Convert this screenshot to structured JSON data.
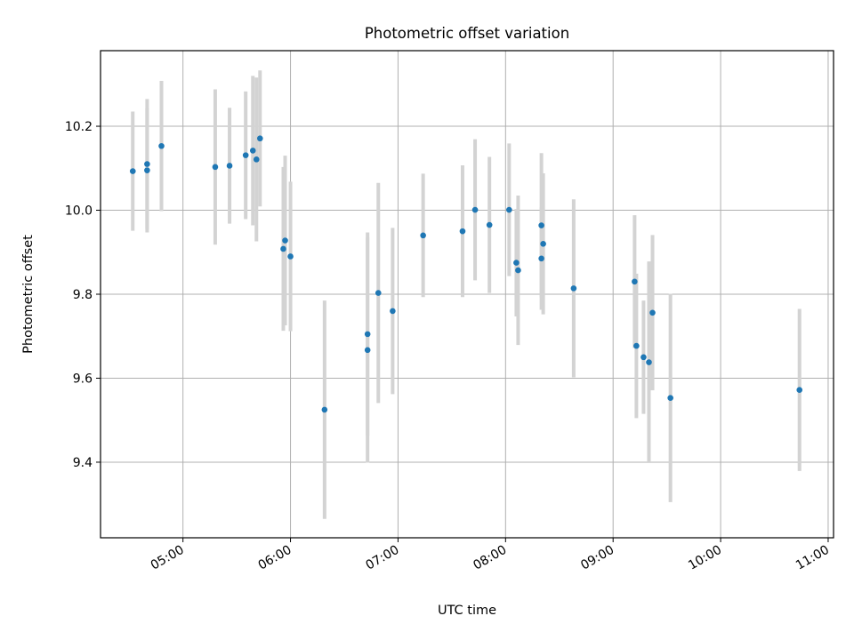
{
  "chart_data": {
    "type": "scatter",
    "title": "Photometric offset variation",
    "xlabel": "UTC time",
    "ylabel": "Photometric offset",
    "x_ticks": [
      "05:00",
      "06:00",
      "07:00",
      "08:00",
      "09:00",
      "10:00",
      "11:00"
    ],
    "y_ticks": [
      "9.4",
      "9.6",
      "9.8",
      "10.0",
      "10.2"
    ],
    "xlim": [
      "04:14",
      "11:03"
    ],
    "ylim": [
      9.22,
      10.38
    ],
    "grid": true,
    "colors": {
      "point": "#1f77b4",
      "errorbar": "#d3d3d3",
      "grid": "#b0b0b0"
    },
    "series": [
      {
        "points": [
          {
            "x": "04:32",
            "y": 10.093,
            "err": 0.142
          },
          {
            "x": "04:40",
            "y": 10.11,
            "err": 0.155
          },
          {
            "x": "04:40",
            "y": 10.095,
            "err": 0.148
          },
          {
            "x": "04:48",
            "y": 10.153,
            "err": 0.155
          },
          {
            "x": "05:18",
            "y": 10.103,
            "err": 0.185
          },
          {
            "x": "05:26",
            "y": 10.106,
            "err": 0.138
          },
          {
            "x": "05:35",
            "y": 10.131,
            "err": 0.152
          },
          {
            "x": "05:39",
            "y": 10.142,
            "err": 0.178
          },
          {
            "x": "05:41",
            "y": 10.121,
            "err": 0.195
          },
          {
            "x": "05:43",
            "y": 10.171,
            "err": 0.162
          },
          {
            "x": "05:56",
            "y": 9.908,
            "err": 0.195
          },
          {
            "x": "05:57",
            "y": 9.928,
            "err": 0.202
          },
          {
            "x": "06:00",
            "y": 9.89,
            "err": 0.178
          },
          {
            "x": "06:19",
            "y": 9.525,
            "err": 0.26
          },
          {
            "x": "06:43",
            "y": 9.705,
            "err": 0.242
          },
          {
            "x": "06:43",
            "y": 9.667,
            "err": 0.268
          },
          {
            "x": "06:49",
            "y": 9.803,
            "err": 0.262
          },
          {
            "x": "06:57",
            "y": 9.76,
            "err": 0.198
          },
          {
            "x": "07:14",
            "y": 9.94,
            "err": 0.147
          },
          {
            "x": "07:36",
            "y": 9.95,
            "err": 0.157
          },
          {
            "x": "07:43",
            "y": 10.001,
            "err": 0.168
          },
          {
            "x": "07:51",
            "y": 9.965,
            "err": 0.162
          },
          {
            "x": "08:02",
            "y": 10.001,
            "err": 0.158
          },
          {
            "x": "08:06",
            "y": 9.875,
            "err": 0.128
          },
          {
            "x": "08:07",
            "y": 9.857,
            "err": 0.178
          },
          {
            "x": "08:20",
            "y": 9.964,
            "err": 0.172
          },
          {
            "x": "08:20",
            "y": 9.885,
            "err": 0.122
          },
          {
            "x": "08:21",
            "y": 9.92,
            "err": 0.168
          },
          {
            "x": "08:38",
            "y": 9.814,
            "err": 0.212
          },
          {
            "x": "09:12",
            "y": 9.83,
            "err": 0.158
          },
          {
            "x": "09:13",
            "y": 9.677,
            "err": 0.172
          },
          {
            "x": "09:17",
            "y": 9.65,
            "err": 0.135
          },
          {
            "x": "09:20",
            "y": 9.638,
            "err": 0.24
          },
          {
            "x": "09:22",
            "y": 9.756,
            "err": 0.185
          },
          {
            "x": "09:32",
            "y": 9.553,
            "err": 0.248
          },
          {
            "x": "10:44",
            "y": 9.572,
            "err": 0.193
          }
        ]
      }
    ]
  }
}
